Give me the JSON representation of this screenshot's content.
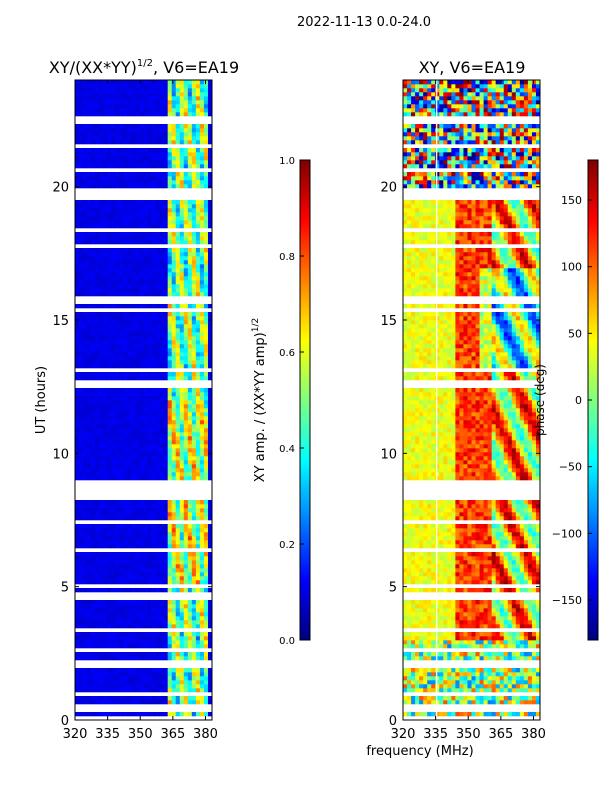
{
  "figure": {
    "suptitle": "2022-11-13 0.0-24.0",
    "xlabel": "frequency (MHz)"
  },
  "chart_data": [
    {
      "type": "heatmap",
      "title_main": "XY/(XX*YY)",
      "title_exp": "1/2",
      "title_suffix": ", V6=EA19",
      "xlabel": "",
      "ylabel": "UT (hours)",
      "xlim": [
        320,
        383
      ],
      "ylim": [
        0,
        24
      ],
      "xticks": [
        320,
        335,
        350,
        365,
        380
      ],
      "yticks": [
        0,
        5,
        10,
        15,
        20
      ],
      "colorbar": {
        "label_main": "XY amp. / (XX*YY amp)",
        "label_exp": "1/2",
        "range": [
          0.0,
          1.0
        ],
        "ticks": [
          0.0,
          0.2,
          0.4,
          0.6,
          0.8,
          1.0
        ],
        "tick_labels": [
          "0.0",
          "0.2",
          "0.4",
          "0.6",
          "0.8",
          "1.0"
        ]
      },
      "colormap": "jet"
    },
    {
      "type": "heatmap",
      "title": "XY, V6=EA19",
      "xlabel": "",
      "ylabel": "",
      "xlim": [
        320,
        383
      ],
      "ylim": [
        0,
        24
      ],
      "xticks": [
        320,
        335,
        350,
        365,
        380
      ],
      "yticks": [
        0,
        5,
        10,
        15,
        20
      ],
      "colorbar": {
        "label": "phase (deg)",
        "range": [
          -180,
          180
        ],
        "ticks": [
          -150,
          -100,
          -50,
          0,
          50,
          100,
          150
        ],
        "tick_labels": [
          "−150",
          "−100",
          "−50",
          "0",
          "50",
          "100",
          "150"
        ]
      },
      "colormap": "jet"
    }
  ],
  "jet_colors": [
    "#00007f",
    "#0000ff",
    "#007fff",
    "#00ffff",
    "#7fff7f",
    "#ffff00",
    "#ff7f00",
    "#ff0000",
    "#7f0000"
  ]
}
